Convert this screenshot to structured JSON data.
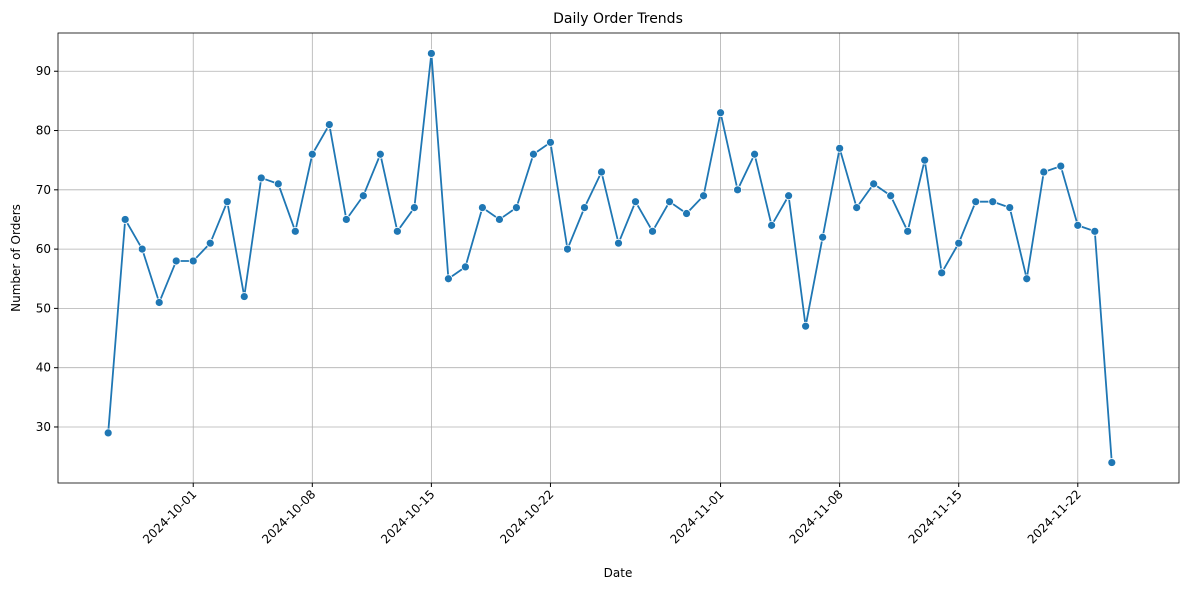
{
  "chart_data": {
    "type": "line",
    "title": "Daily Order Trends",
    "x_label": "Date",
    "y_label": "Number of Orders",
    "x": [
      "2024-09-26",
      "2024-09-27",
      "2024-09-28",
      "2024-09-29",
      "2024-09-30",
      "2024-10-01",
      "2024-10-02",
      "2024-10-03",
      "2024-10-04",
      "2024-10-05",
      "2024-10-06",
      "2024-10-07",
      "2024-10-08",
      "2024-10-09",
      "2024-10-10",
      "2024-10-11",
      "2024-10-12",
      "2024-10-13",
      "2024-10-14",
      "2024-10-15",
      "2024-10-16",
      "2024-10-17",
      "2024-10-18",
      "2024-10-19",
      "2024-10-20",
      "2024-10-21",
      "2024-10-22",
      "2024-10-23",
      "2024-10-24",
      "2024-10-25",
      "2024-10-26",
      "2024-10-27",
      "2024-10-28",
      "2024-10-29",
      "2024-10-30",
      "2024-10-31",
      "2024-11-01",
      "2024-11-02",
      "2024-11-03",
      "2024-11-04",
      "2024-11-05",
      "2024-11-06",
      "2024-11-07",
      "2024-11-08",
      "2024-11-09",
      "2024-11-10",
      "2024-11-11",
      "2024-11-12",
      "2024-11-13",
      "2024-11-14",
      "2024-11-15",
      "2024-11-16",
      "2024-11-17",
      "2024-11-18",
      "2024-11-19",
      "2024-11-20",
      "2024-11-21",
      "2024-11-22",
      "2024-11-23",
      "2024-11-24"
    ],
    "values": [
      29,
      65,
      60,
      51,
      58,
      58,
      61,
      68,
      52,
      72,
      71,
      63,
      76,
      81,
      65,
      69,
      76,
      63,
      67,
      93,
      55,
      57,
      67,
      65,
      67,
      76,
      78,
      60,
      67,
      73,
      61,
      68,
      63,
      68,
      66,
      69,
      83,
      70,
      76,
      64,
      69,
      47,
      62,
      77,
      67,
      71,
      69,
      63,
      75,
      56,
      61,
      68,
      68,
      67,
      55,
      73,
      74,
      64,
      63,
      24
    ],
    "color": "#1f77b4",
    "xlim": [
      "2024-09-23T01:12",
      "2024-11-27T22:48"
    ],
    "xticks": [
      "2024-10-01",
      "2024-10-08",
      "2024-10-15",
      "2024-10-22",
      "2024-11-01",
      "2024-11-08",
      "2024-11-15",
      "2024-11-22"
    ],
    "ylim": [
      20.55,
      96.45
    ],
    "yticks": [
      30,
      40,
      50,
      60,
      70,
      80,
      90
    ],
    "grid": true
  }
}
